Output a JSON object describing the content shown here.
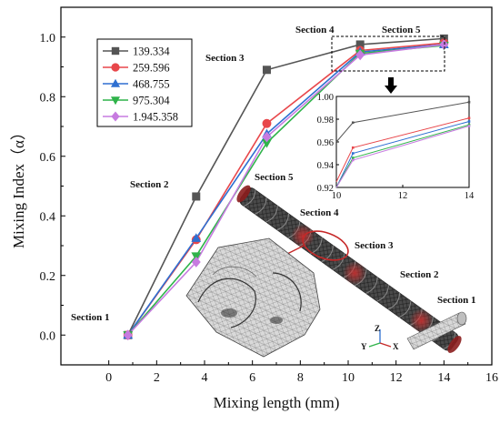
{
  "chart_data": {
    "type": "line",
    "title": "",
    "xlabel": "Mixing length (mm)",
    "ylabel": "Mixing Index（α）",
    "xlim": [
      -2,
      16
    ],
    "ylim": [
      -0.1,
      1.1
    ],
    "x": [
      0.8,
      3.65,
      6.6,
      10.5,
      14
    ],
    "xticks": [
      "0",
      "2",
      "4",
      "6",
      "8",
      "10",
      "12",
      "14",
      "16"
    ],
    "yticks": [
      "0.0",
      "0.2",
      "0.4",
      "0.6",
      "0.8",
      "1.0"
    ],
    "series": [
      {
        "name": "139.334",
        "color": "#555555",
        "marker": "square",
        "values": [
          0.0,
          0.465,
          0.89,
          0.975,
          0.995
        ]
      },
      {
        "name": "259.596",
        "color": "#e8474b",
        "marker": "circle",
        "values": [
          0.0,
          0.32,
          0.71,
          0.955,
          0.98
        ]
      },
      {
        "name": "468.755",
        "color": "#2e6fd1",
        "marker": "triangle-up",
        "values": [
          0.0,
          0.325,
          0.675,
          0.95,
          0.975
        ]
      },
      {
        "name": "975.304",
        "color": "#2fb34a",
        "marker": "triangle-down",
        "values": [
          0.0,
          0.265,
          0.645,
          0.945,
          0.972
        ]
      },
      {
        "name": "1.945.358",
        "color": "#c77be0",
        "marker": "diamond",
        "values": [
          0.0,
          0.245,
          0.665,
          0.94,
          0.975
        ]
      }
    ],
    "legend_position": "top-left",
    "section_labels": [
      "Section 1",
      "Section 2",
      "Section 3",
      "Section 4",
      "Section 5"
    ],
    "inset": {
      "xlim": [
        10,
        14
      ],
      "ylim": [
        0.92,
        1.0
      ],
      "xticks": [
        "10",
        "12",
        "14"
      ],
      "yticks": [
        "0.92",
        "0.94",
        "0.96",
        "0.98",
        "1.00"
      ],
      "x": [
        10.5,
        14
      ],
      "series_values": [
        [
          0.977,
          0.995
        ],
        [
          0.955,
          0.981
        ],
        [
          0.95,
          0.978
        ],
        [
          0.946,
          0.975
        ],
        [
          0.944,
          0.974
        ]
      ],
      "extra_start": [
        0.96,
        0.925,
        0.92,
        0.92,
        0.92
      ]
    },
    "diagram_labels": {
      "section_1": "Section 1",
      "section_2": "Section 2",
      "section_3": "Section 3",
      "section_4": "Section 4",
      "section_5": "Section 5",
      "axis_z": "Z",
      "axis_x": "X",
      "axis_y": "Y"
    }
  }
}
